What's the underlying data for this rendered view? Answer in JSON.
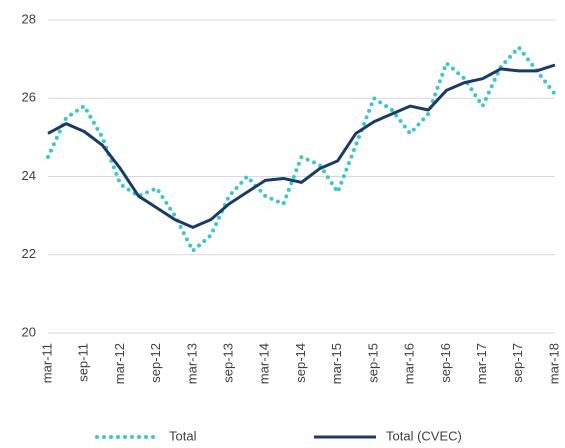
{
  "chart_data": {
    "type": "line",
    "categories": [
      "mar-11",
      null,
      "sep-11",
      null,
      "mar-12",
      null,
      "sep-12",
      null,
      "mar-13",
      null,
      "sep-13",
      null,
      "mar-14",
      null,
      "sep-14",
      null,
      "mar-15",
      null,
      "sep-15",
      null,
      "mar-16",
      null,
      "sep-16",
      null,
      "mar-17",
      null,
      "sep-17",
      null,
      "mar-18"
    ],
    "series": [
      {
        "name": "Total",
        "color": "#3ec6c9",
        "style": "dotted",
        "values": [
          24.5,
          25.5,
          25.8,
          25.0,
          23.8,
          23.5,
          23.7,
          23.0,
          22.1,
          22.5,
          23.5,
          24.0,
          23.5,
          23.3,
          24.5,
          24.3,
          23.6,
          24.8,
          26.0,
          25.7,
          25.1,
          25.6,
          26.9,
          26.5,
          25.8,
          26.8,
          27.3,
          26.7,
          26.1
        ]
      },
      {
        "name": "Total (CVEC)",
        "color": "#1c3a66",
        "style": "solid",
        "values": [
          25.1,
          25.35,
          25.15,
          24.8,
          24.2,
          23.5,
          23.2,
          22.9,
          22.7,
          22.9,
          23.3,
          23.6,
          23.9,
          23.95,
          23.85,
          24.2,
          24.4,
          25.1,
          25.4,
          25.6,
          25.8,
          25.7,
          26.2,
          26.4,
          26.5,
          26.75,
          26.7,
          26.7,
          26.85
        ]
      }
    ],
    "ylim": [
      20,
      28
    ],
    "yticks": [
      20,
      22,
      24,
      26,
      28
    ],
    "grid": true,
    "legend": "bottom"
  }
}
